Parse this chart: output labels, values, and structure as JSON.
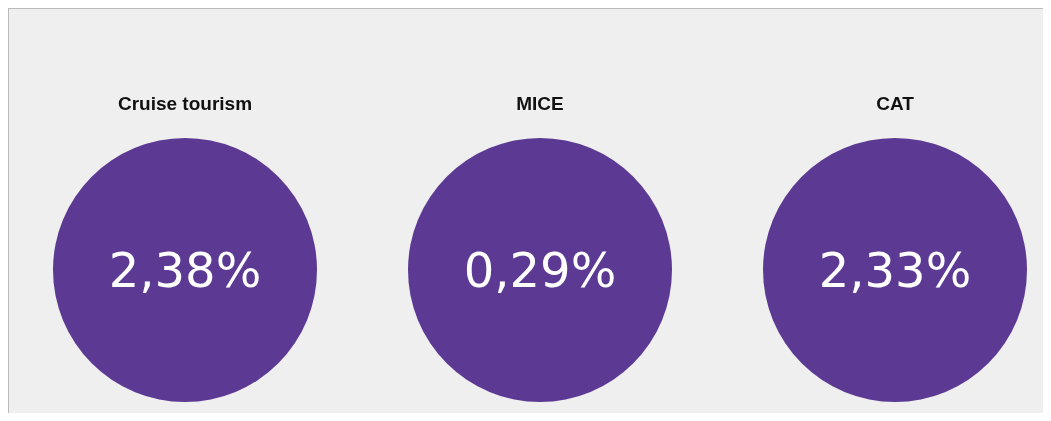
{
  "chart_data": {
    "type": "other",
    "categories": [
      "Cruise tourism",
      "MICE",
      "CAT"
    ],
    "values": [
      2.38,
      0.29,
      2.33
    ],
    "value_labels": [
      "2,38%",
      "0,29%",
      "2,33%"
    ],
    "color": "#5c3a93"
  }
}
